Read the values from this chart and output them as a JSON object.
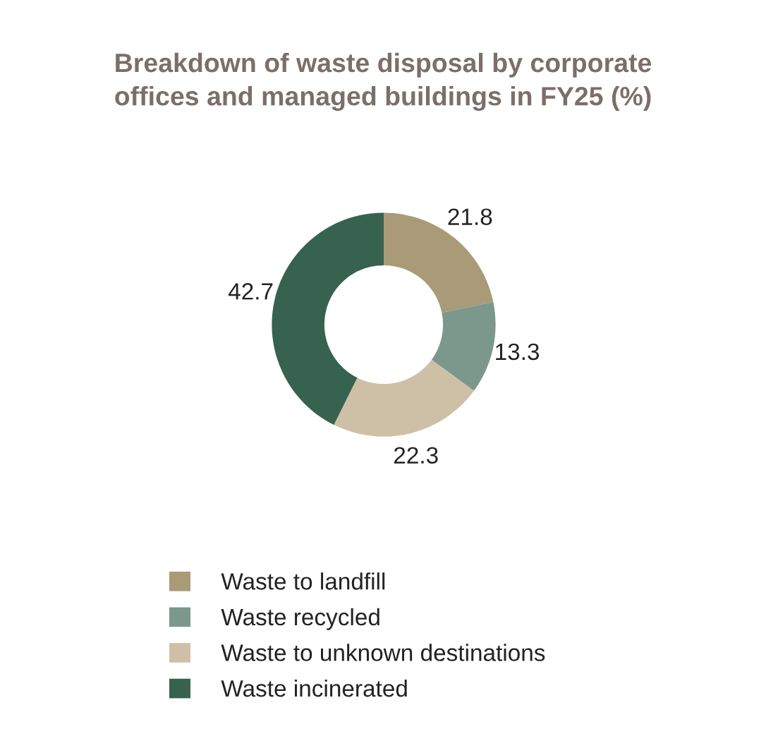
{
  "chart_data": {
    "type": "donut",
    "title": "Breakdown of waste disposal by corporate\noffices and managed buildings in FY25 (%)",
    "categories": [
      "Waste to landfill",
      "Waste recycled",
      "Waste to unknown destinations",
      "Waste incinerated"
    ],
    "values": [
      21.8,
      13.3,
      22.3,
      42.7
    ],
    "colors": [
      "#a99a78",
      "#7c978c",
      "#cebfa7",
      "#36624f"
    ],
    "data_labels": true,
    "legend": "bottom"
  }
}
